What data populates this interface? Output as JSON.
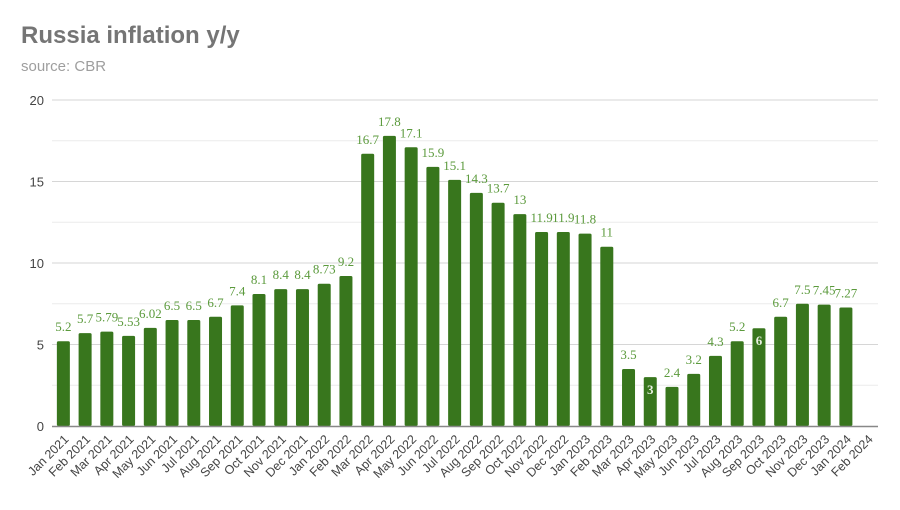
{
  "header": {
    "title": "Russia inflation y/y",
    "subtitle": "source: CBR"
  },
  "colors": {
    "bar": "#38761d",
    "data_label": "#5b9a3c",
    "data_label_inside": "#e8f0e0",
    "grid_major": "#d6d6d6",
    "grid_minor": "#ececec",
    "axis": "#888888"
  },
  "chart_data": {
    "type": "bar",
    "title": "Russia inflation y/y",
    "subtitle": "source: CBR",
    "xlabel": "",
    "ylabel": "",
    "ylim": [
      0,
      20
    ],
    "yticks": [
      0,
      5,
      10,
      15,
      20
    ],
    "grid": true,
    "legend": "none",
    "categories": [
      "Jan 2021",
      "Feb 2021",
      "Mar 2021",
      "Apr 2021",
      "May 2021",
      "Jun 2021",
      "Jul 2021",
      "Aug 2021",
      "Sep 2021",
      "Oct 2021",
      "Nov 2021",
      "Dec 2021",
      "Jan 2022",
      "Feb 2022",
      "Mar 2022",
      "Apr 2022",
      "May 2022",
      "Jun 2022",
      "Jul 2022",
      "Aug 2022",
      "Sep 2022",
      "Oct 2022",
      "Nov 2022",
      "Dec 2022",
      "Jan 2023",
      "Feb 2023",
      "Mar 2023",
      "Apr 2023",
      "May 2023",
      "Jun 2023",
      "Jul 2023",
      "Aug 2023",
      "Sep 2023",
      "Oct 2023",
      "Nov 2023",
      "Dec 2023",
      "Jan 2024",
      "Feb 2024"
    ],
    "values": [
      5.2,
      5.7,
      5.79,
      5.53,
      6.02,
      6.5,
      6.5,
      6.7,
      7.4,
      8.1,
      8.4,
      8.4,
      8.73,
      9.2,
      16.7,
      17.8,
      17.1,
      15.9,
      15.1,
      14.3,
      13.7,
      13,
      11.9,
      11.9,
      11.8,
      11,
      3.5,
      3,
      2.4,
      3.2,
      4.3,
      5.2,
      6,
      6.7,
      7.5,
      7.45,
      7.27,
      null
    ],
    "labels_inside": [
      27,
      32
    ]
  }
}
